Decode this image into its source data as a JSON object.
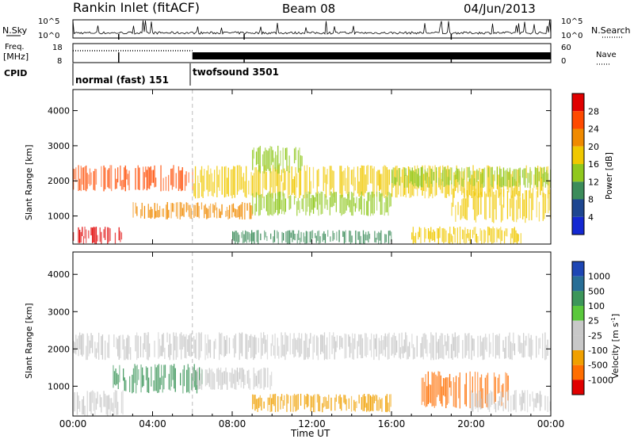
{
  "header": {
    "title": "Rankin Inlet (fitACF)",
    "beam": "Beam 08",
    "date": "04/Jun/2013"
  },
  "panels": {
    "nsky": {
      "label": "N.Sky",
      "yticks": [
        "10^5",
        "10^0"
      ],
      "right_label": "N.Search",
      "right_yticks": [
        "10^5",
        "10^0"
      ]
    },
    "freq": {
      "label_line1": "Freq.",
      "label_line2": "[MHz]",
      "yticks": [
        "18",
        "8"
      ],
      "right_label": "Nave",
      "right_yticks": [
        "60",
        "0"
      ]
    },
    "cpid": {
      "label": "CPID",
      "modes": [
        {
          "name": "normal (fast) 151",
          "start_hour": 0,
          "end_hour": 6
        },
        {
          "name": "twofsound 3501",
          "start_hour": 6,
          "end_hour": 24
        }
      ]
    }
  },
  "chart_data": [
    {
      "type": "heatmap",
      "name": "power",
      "ylabel": "Slant Range [km]",
      "ylim": [
        200,
        4600
      ],
      "yticks": [
        "1000",
        "2000",
        "3000",
        "4000"
      ],
      "colorbar_label": "Power [dB]",
      "colorbar_ticks": [
        "28",
        "24",
        "20",
        "16",
        "12",
        "8",
        "4"
      ],
      "colorbar_colors": [
        "#e00000",
        "#ff4a00",
        "#f08a00",
        "#f0c800",
        "#90c81e",
        "#3c8c5a",
        "#1e4690",
        "#1428d2"
      ],
      "xlim": [
        0,
        24
      ],
      "regions": [
        {
          "x0": 0.0,
          "x1": 6.0,
          "y0": 1700,
          "y1": 2450,
          "level": 24
        },
        {
          "x0": 6.0,
          "x1": 24.0,
          "y0": 1500,
          "y1": 2450,
          "level": 14
        },
        {
          "x0": 3.0,
          "x1": 9.0,
          "y0": 900,
          "y1": 1400,
          "level": 18
        },
        {
          "x0": 9.0,
          "x1": 16.0,
          "y0": 1000,
          "y1": 1700,
          "level": 12
        },
        {
          "x0": 9.0,
          "x1": 11.5,
          "y0": 2200,
          "y1": 3000,
          "level": 10
        },
        {
          "x0": 0.0,
          "x1": 2.5,
          "y0": 200,
          "y1": 700,
          "level": 28
        },
        {
          "x0": 8.0,
          "x1": 16.0,
          "y0": 200,
          "y1": 600,
          "level": 8
        },
        {
          "x0": 17.0,
          "x1": 22.5,
          "y0": 200,
          "y1": 700,
          "level": 16
        },
        {
          "x0": 19.0,
          "x1": 24.0,
          "y0": 800,
          "y1": 1800,
          "level": 14
        },
        {
          "x0": 16.0,
          "x1": 24.0,
          "y0": 1800,
          "y1": 2400,
          "level": 12
        }
      ]
    },
    {
      "type": "heatmap",
      "name": "velocity",
      "ylabel": "Slant Range [km]",
      "ylim": [
        200,
        4600
      ],
      "yticks": [
        "1000",
        "2000",
        "3000",
        "4000"
      ],
      "colorbar_label": "Velocity [m s^-1]",
      "colorbar_ticks": [
        "1000",
        "500",
        "100",
        "25",
        "-25",
        "-100",
        "-500",
        "-1000"
      ],
      "colorbar_colors": [
        "#1e46b4",
        "#286e96",
        "#3c965a",
        "#5ac83c",
        "#c8c8c8",
        "#c8c8c8",
        "#f0a000",
        "#ff6e00",
        "#e00000"
      ],
      "xlim": [
        0,
        24
      ],
      "regions": [
        {
          "x0": 0.0,
          "x1": 24.0,
          "y0": 1700,
          "y1": 2450,
          "level": 0
        },
        {
          "x0": 2.0,
          "x1": 6.5,
          "y0": 800,
          "y1": 1600,
          "level": 300
        },
        {
          "x0": 0.0,
          "x1": 2.5,
          "y0": 200,
          "y1": 900,
          "level": 0
        },
        {
          "x0": 6.0,
          "x1": 10.0,
          "y0": 900,
          "y1": 1500,
          "level": 0
        },
        {
          "x0": 9.0,
          "x1": 16.0,
          "y0": 300,
          "y1": 800,
          "level": -200
        },
        {
          "x0": 17.5,
          "x1": 22.0,
          "y0": 400,
          "y1": 1400,
          "level": -300
        },
        {
          "x0": 20.0,
          "x1": 24.0,
          "y0": 300,
          "y1": 900,
          "level": 0
        }
      ]
    }
  ],
  "time_axis": {
    "label": "Time UT",
    "ticks": [
      "00:00",
      "04:00",
      "08:00",
      "12:00",
      "16:00",
      "20:00",
      "00:00"
    ]
  }
}
